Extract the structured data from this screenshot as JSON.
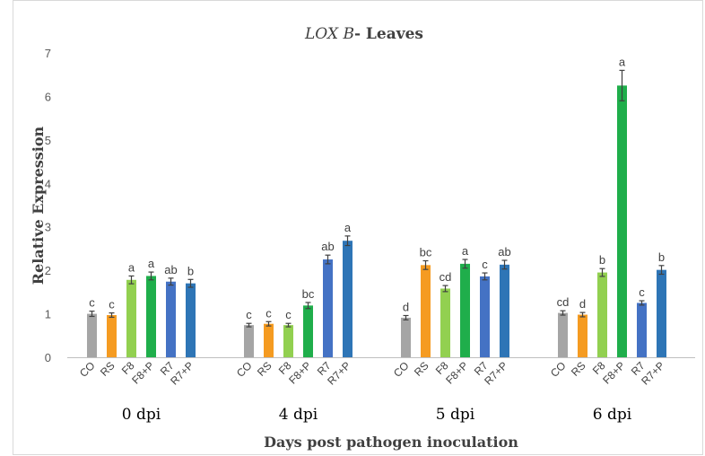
{
  "chart_data": {
    "type": "bar",
    "title_italic": "LOX B",
    "title_rest": "- Leaves",
    "xlabel": "Days post pathogen inoculation",
    "ylabel": "Relative Expression",
    "ylim": [
      0,
      7
    ],
    "yticks": [
      "0",
      "1",
      "2",
      "3",
      "4",
      "5",
      "6",
      "7"
    ],
    "grid": false,
    "treatments": [
      "CO",
      "RS",
      "F8",
      "F8+P",
      "R7",
      "R7+P"
    ],
    "colors": {
      "CO": "#a5a5a5",
      "RS": "#f59b21",
      "F8": "#92d050",
      "F8+P": "#1fae4b",
      "R7": "#4472c4",
      "R7+P": "#2e75b6"
    },
    "groups": [
      {
        "label": "0 dpi",
        "values": [
          1.0,
          0.97,
          1.78,
          1.87,
          1.74,
          1.7
        ],
        "errors": [
          0.06,
          0.05,
          0.09,
          0.09,
          0.08,
          0.09
        ],
        "letters": [
          "c",
          "c",
          "a",
          "a",
          "ab",
          "b"
        ]
      },
      {
        "label": "4 dpi",
        "values": [
          0.74,
          0.77,
          0.74,
          1.19,
          2.25,
          2.68
        ],
        "errors": [
          0.04,
          0.05,
          0.04,
          0.07,
          0.1,
          0.11
        ],
        "letters": [
          "c",
          "c",
          "c",
          "bc",
          "ab",
          "a"
        ]
      },
      {
        "label": "5 dpi",
        "values": [
          0.91,
          2.12,
          1.58,
          2.15,
          1.86,
          2.13
        ],
        "errors": [
          0.05,
          0.1,
          0.07,
          0.1,
          0.08,
          0.1
        ],
        "letters": [
          "d",
          "bc",
          "cd",
          "a",
          "c",
          "ab"
        ]
      },
      {
        "label": "6 dpi",
        "values": [
          1.02,
          0.98,
          1.95,
          6.25,
          1.25,
          2.01
        ],
        "errors": [
          0.05,
          0.05,
          0.09,
          0.35,
          0.05,
          0.1
        ],
        "letters": [
          "cd",
          "d",
          "b",
          "a",
          "c",
          "b"
        ]
      }
    ]
  }
}
